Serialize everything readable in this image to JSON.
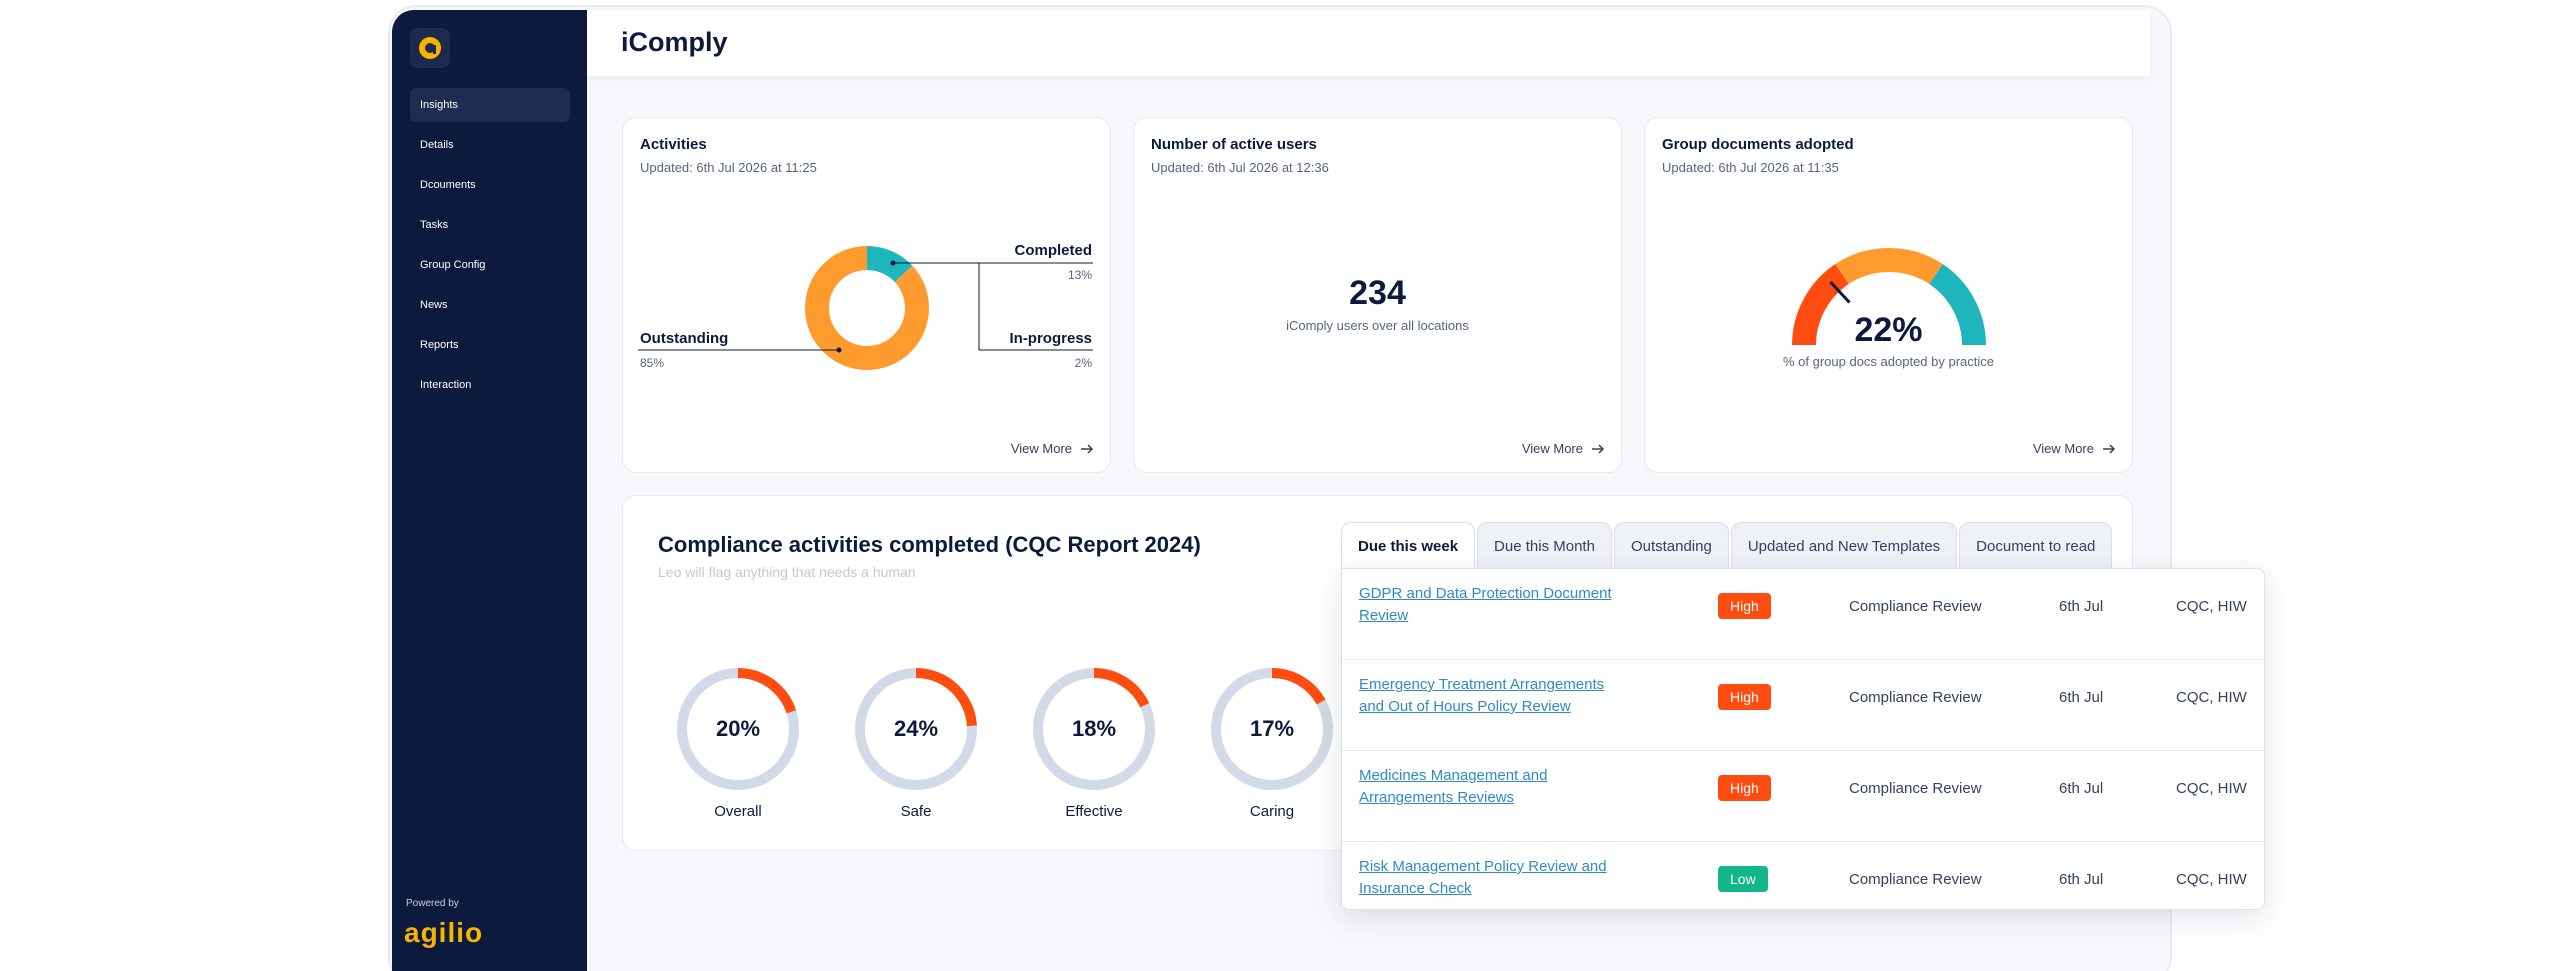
{
  "app": {
    "title": "iComply"
  },
  "sidebar": {
    "logo_letter": "a",
    "items": [
      {
        "label": "Insights",
        "active": true
      },
      {
        "label": "Details"
      },
      {
        "label": "Dcouments"
      },
      {
        "label": "Tasks"
      },
      {
        "label": "Group Config"
      },
      {
        "label": "News"
      },
      {
        "label": "Reports"
      },
      {
        "label": "Interaction"
      }
    ],
    "powered_by": "Powered by",
    "brand": "agilio"
  },
  "cards": {
    "activities": {
      "title": "Activities",
      "updated": "Updated: 6th Jul 2026 at 11:25",
      "completed_label": "Completed",
      "completed_pct": "13%",
      "inprogress_label": "In-progress",
      "inprogress_pct": "2%",
      "outstanding_label": "Outstanding",
      "outstanding_pct": "85%",
      "view_more": "View More"
    },
    "users": {
      "title": "Number of active users",
      "updated": "Updated: 6th Jul 2026 at 12:36",
      "value": "234",
      "caption": "iComply users over all locations",
      "view_more": "View More"
    },
    "group_docs": {
      "title": "Group documents adopted",
      "updated": "Updated: 6th Jul 2026 at 11:35",
      "value": "22%",
      "caption": "% of group docs adopted by practice",
      "view_more": "View More"
    }
  },
  "chart_data": [
    {
      "type": "pie",
      "categories": [
        "Completed",
        "In-progress",
        "Outstanding"
      ],
      "values": [
        13,
        2,
        85
      ]
    },
    {
      "type": "gauge",
      "value": 22,
      "range": [
        0,
        100
      ]
    }
  ],
  "compliance": {
    "title": "Compliance activities completed (CQC Report 2024)",
    "subtitle": "Leo will flag anything that needs a human",
    "rings": [
      {
        "label": "Overall",
        "value": "20%",
        "fraction": 0.2
      },
      {
        "label": "Safe",
        "value": "24%",
        "fraction": 0.24
      },
      {
        "label": "Effective",
        "value": "18%",
        "fraction": 0.18
      },
      {
        "label": "Caring",
        "value": "17%",
        "fraction": 0.17
      }
    ]
  },
  "tasks": {
    "tabs": [
      "Due this week",
      "Due this Month",
      "Outstanding",
      "Updated and New Templates",
      "Document to read"
    ],
    "rows": [
      {
        "title": "GDPR and Data Protection Document Review",
        "priority": "High",
        "type": "Compliance Review",
        "due": "6th Jul",
        "regs": "CQC, HIW"
      },
      {
        "title": "Emergency Treatment Arrangements and Out of Hours Policy Review",
        "priority": "High",
        "type": "Compliance Review",
        "due": "6th Jul",
        "regs": "CQC, HIW"
      },
      {
        "title": "Medicines Management and Arrangements Reviews",
        "priority": "High",
        "type": "Compliance Review",
        "due": "6th Jul",
        "regs": "CQC, HIW"
      },
      {
        "title": "Risk Management Policy Review and Insurance Check",
        "priority": "Low",
        "type": "Compliance Review",
        "due": "6th Jul",
        "regs": "CQC, HIW"
      }
    ]
  },
  "colors": {
    "navy": "#0c1a3d",
    "orange": "#ff9a2e",
    "teal": "#1eb5bd",
    "red": "#ff4d12",
    "green": "#13b58a",
    "ring_track": "#d1dae6"
  }
}
